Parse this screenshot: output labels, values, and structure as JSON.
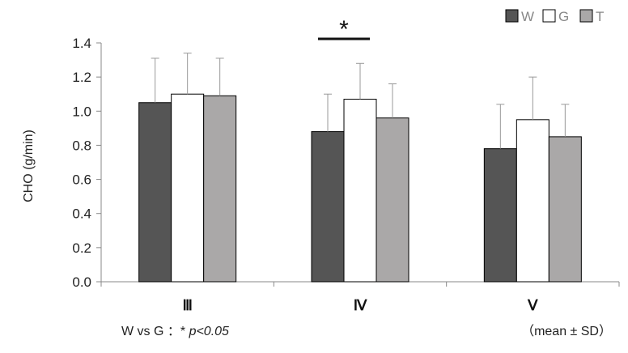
{
  "chart_data": {
    "type": "bar",
    "title": "",
    "xlabel": "",
    "ylabel": "CHO (g/min)",
    "ylim": [
      0,
      1.4
    ],
    "yticks": [
      "0.0",
      "0.2",
      "0.4",
      "0.6",
      "0.8",
      "1.0",
      "1.2",
      "1.4"
    ],
    "categories": [
      "Ⅲ",
      "Ⅳ",
      "Ⅴ"
    ],
    "series": [
      {
        "name": "W",
        "color": "#555555",
        "values": [
          1.05,
          0.88,
          0.78
        ],
        "sd": [
          0.26,
          0.22,
          0.26
        ]
      },
      {
        "name": "G",
        "color": "#ffffff",
        "values": [
          1.1,
          1.07,
          0.95
        ],
        "sd": [
          0.24,
          0.21,
          0.25
        ]
      },
      {
        "name": "T",
        "color": "#aaa8a8",
        "values": [
          1.09,
          0.96,
          0.85
        ],
        "sd": [
          0.22,
          0.2,
          0.19
        ]
      }
    ],
    "grid": false,
    "legend_position": "top-right",
    "significance": {
      "symbol": "*",
      "category": "Ⅳ",
      "between": [
        "W",
        "G"
      ]
    },
    "annotations": {
      "note_prefix": "W vs G ：* ",
      "note_p": "p<0.05",
      "note_right": "（mean ± SD）"
    }
  }
}
